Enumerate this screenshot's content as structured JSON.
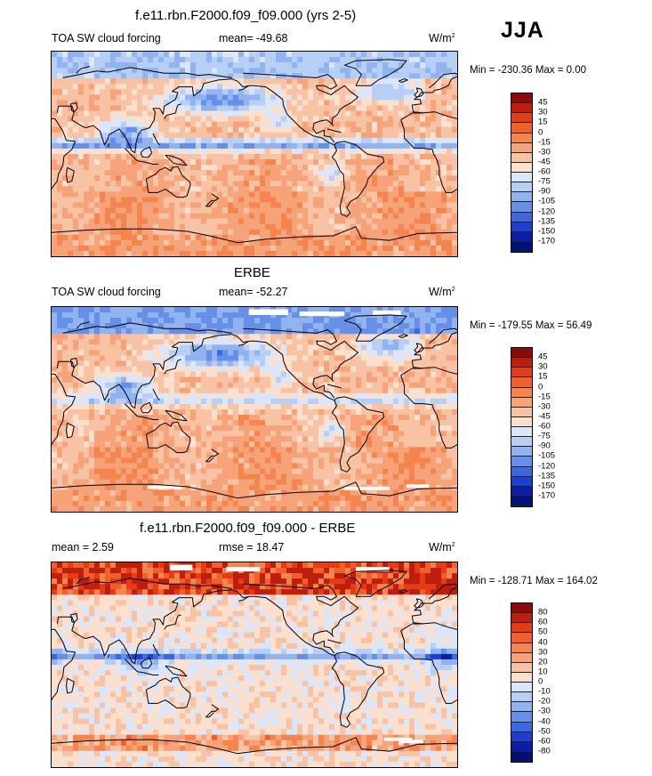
{
  "season": "JJA",
  "units": "W/m",
  "units_sup": "2",
  "panels": [
    {
      "title": "f.e11.rbn.F2000.f09_f09.000 (yrs 2-5)",
      "left_label": "TOA SW cloud forcing",
      "center_label": "mean= -49.68",
      "minmax": "Min = -230.36 Max =   0.00",
      "levels": [
        "45",
        "30",
        "15",
        "0",
        "-15",
        "-30",
        "-45",
        "-60",
        "-75",
        "-90",
        "-105",
        "-120",
        "-135",
        "-150",
        "-170"
      ]
    },
    {
      "title": "ERBE",
      "left_label": "TOA SW cloud forcing",
      "center_label": "mean= -52.27",
      "minmax": "Min = -179.55 Max =  56.49",
      "levels": [
        "45",
        "30",
        "15",
        "0",
        "-15",
        "-30",
        "-45",
        "-60",
        "-75",
        "-90",
        "-105",
        "-120",
        "-135",
        "-150",
        "-170"
      ]
    },
    {
      "title": "f.e11.rbn.F2000.f09_f09.000 - ERBE",
      "left_label": "mean =   2.59",
      "center_label": "rmse =  18.47",
      "minmax": "Min = -128.71 Max = 164.02",
      "levels": [
        "80",
        "60",
        "50",
        "40",
        "30",
        "20",
        "10",
        "0",
        "-10",
        "-20",
        "-30",
        "-40",
        "-50",
        "-60",
        "-80"
      ]
    }
  ],
  "palette": {
    "abs": [
      "#8b0a0a",
      "#bd1e0f",
      "#e53c17",
      "#f0602a",
      "#f4854f",
      "#f6a37a",
      "#f8c2a4",
      "#fbe0d0",
      "#dbe6fa",
      "#b8cff5",
      "#91b3ef",
      "#6690e8",
      "#3c67df",
      "#1c3fd0",
      "#0c1ea8",
      "#02107a"
    ],
    "diff": [
      "#8b0a0a",
      "#bd1e0f",
      "#e53c17",
      "#f0602a",
      "#f4854f",
      "#f6a37a",
      "#f8c2a4",
      "#fbe0d0",
      "#dbe6fa",
      "#b8cff5",
      "#91b3ef",
      "#6690e8",
      "#3c67df",
      "#1c3fd0",
      "#0c1ea8",
      "#02107a"
    ]
  }
}
